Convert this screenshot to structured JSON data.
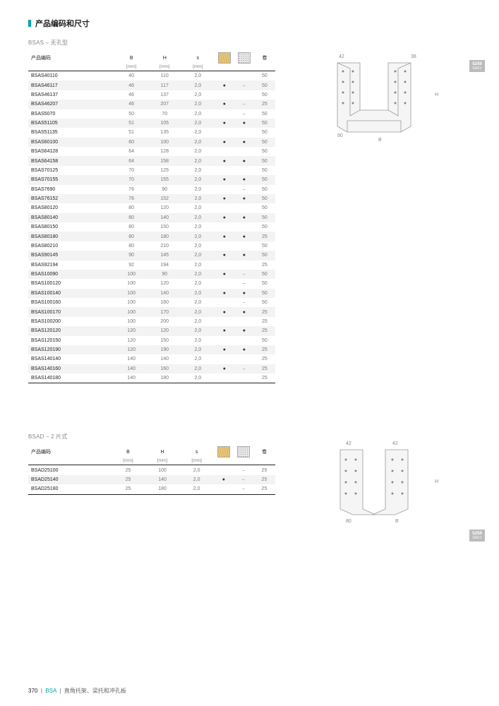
{
  "page_title": "产品编码和尺寸",
  "badge": {
    "code": "S250",
    "finish": "GALV"
  },
  "section1": {
    "subtitle": "BSAS – 无孔型",
    "headers": {
      "code": "产品编码",
      "b": "B",
      "h": "H",
      "s": "s",
      "qty": "卷"
    },
    "units": {
      "b": "[mm]",
      "h": "[mm]",
      "s": "[mm]"
    },
    "diagram": {
      "l1": "42",
      "l2": "38",
      "hlabel": "H",
      "blabel": "B",
      "slabel": "90"
    },
    "rows": [
      {
        "code": "BSAS40110",
        "b": "40",
        "h": "110",
        "s": "2,0",
        "wood": "",
        "conc": "",
        "qty": "50"
      },
      {
        "code": "BSAS46117",
        "b": "46",
        "h": "117",
        "s": "2,0",
        "wood": "●",
        "conc": "–",
        "qty": "50"
      },
      {
        "code": "BSAS46137",
        "b": "46",
        "h": "137",
        "s": "2,0",
        "wood": "",
        "conc": "",
        "qty": "50"
      },
      {
        "code": "BSAS46207",
        "b": "46",
        "h": "207",
        "s": "2,0",
        "wood": "●",
        "conc": "–",
        "qty": "25"
      },
      {
        "code": "BSAS5070",
        "b": "50",
        "h": "70",
        "s": "2,0",
        "wood": "",
        "conc": "–",
        "qty": "50"
      },
      {
        "code": "BSAS51105",
        "b": "51",
        "h": "105",
        "s": "2,0",
        "wood": "●",
        "conc": "●",
        "qty": "50"
      },
      {
        "code": "BSAS51135",
        "b": "51",
        "h": "135",
        "s": "2,0",
        "wood": "",
        "conc": "",
        "qty": "50"
      },
      {
        "code": "BSAS60100",
        "b": "60",
        "h": "100",
        "s": "2,0",
        "wood": "●",
        "conc": "●",
        "qty": "50"
      },
      {
        "code": "BSAS64128",
        "b": "64",
        "h": "128",
        "s": "2,0",
        "wood": "",
        "conc": "",
        "qty": "50"
      },
      {
        "code": "BSAS64158",
        "b": "64",
        "h": "158",
        "s": "2,0",
        "wood": "●",
        "conc": "●",
        "qty": "50"
      },
      {
        "code": "BSAS70125",
        "b": "70",
        "h": "125",
        "s": "2,0",
        "wood": "",
        "conc": "",
        "qty": "50"
      },
      {
        "code": "BSAS70155",
        "b": "70",
        "h": "155",
        "s": "2,0",
        "wood": "●",
        "conc": "●",
        "qty": "50"
      },
      {
        "code": "BSAS7690",
        "b": "76",
        "h": "90",
        "s": "2,0",
        "wood": "",
        "conc": "–",
        "qty": "50"
      },
      {
        "code": "BSAS76152",
        "b": "76",
        "h": "152",
        "s": "2,0",
        "wood": "●",
        "conc": "●",
        "qty": "50"
      },
      {
        "code": "BSAS80120",
        "b": "80",
        "h": "120",
        "s": "2,0",
        "wood": "",
        "conc": "",
        "qty": "50"
      },
      {
        "code": "BSAS80140",
        "b": "80",
        "h": "140",
        "s": "2,0",
        "wood": "●",
        "conc": "●",
        "qty": "50"
      },
      {
        "code": "BSAS80150",
        "b": "80",
        "h": "150",
        "s": "2,0",
        "wood": "",
        "conc": "",
        "qty": "50"
      },
      {
        "code": "BSAS80180",
        "b": "80",
        "h": "180",
        "s": "2,0",
        "wood": "●",
        "conc": "●",
        "qty": "25"
      },
      {
        "code": "BSAS80210",
        "b": "80",
        "h": "210",
        "s": "2,0",
        "wood": "",
        "conc": "",
        "qty": "50"
      },
      {
        "code": "BSAS90145",
        "b": "90",
        "h": "145",
        "s": "2,0",
        "wood": "●",
        "conc": "●",
        "qty": "50"
      },
      {
        "code": "BSAS92194",
        "b": "92",
        "h": "194",
        "s": "2,0",
        "wood": "",
        "conc": "",
        "qty": "25"
      },
      {
        "code": "BSAS10090",
        "b": "100",
        "h": "90",
        "s": "2,0",
        "wood": "●",
        "conc": "–",
        "qty": "50"
      },
      {
        "code": "BSAS100120",
        "b": "100",
        "h": "120",
        "s": "2,0",
        "wood": "",
        "conc": "–",
        "qty": "50"
      },
      {
        "code": "BSAS100140",
        "b": "100",
        "h": "140",
        "s": "2,0",
        "wood": "●",
        "conc": "●",
        "qty": "50"
      },
      {
        "code": "BSAS100160",
        "b": "100",
        "h": "160",
        "s": "2,0",
        "wood": "",
        "conc": "–",
        "qty": "50"
      },
      {
        "code": "BSAS100170",
        "b": "100",
        "h": "170",
        "s": "2,0",
        "wood": "●",
        "conc": "●",
        "qty": "25"
      },
      {
        "code": "BSAS100200",
        "b": "100",
        "h": "200",
        "s": "2,0",
        "wood": "",
        "conc": "",
        "qty": "25"
      },
      {
        "code": "BSAS120120",
        "b": "120",
        "h": "120",
        "s": "2,0",
        "wood": "●",
        "conc": "●",
        "qty": "25"
      },
      {
        "code": "BSAS120150",
        "b": "120",
        "h": "150",
        "s": "2,0",
        "wood": "",
        "conc": "",
        "qty": "50"
      },
      {
        "code": "BSAS120190",
        "b": "120",
        "h": "190",
        "s": "2,0",
        "wood": "●",
        "conc": "●",
        "qty": "25"
      },
      {
        "code": "BSAS140140",
        "b": "140",
        "h": "140",
        "s": "2,0",
        "wood": "",
        "conc": "",
        "qty": "25"
      },
      {
        "code": "BSAS140160",
        "b": "140",
        "h": "160",
        "s": "2,0",
        "wood": "●",
        "conc": "–",
        "qty": "25"
      },
      {
        "code": "BSAS140180",
        "b": "140",
        "h": "180",
        "s": "2,0",
        "wood": "",
        "conc": "",
        "qty": "25"
      }
    ]
  },
  "section2": {
    "subtitle": "BSAD – 2 片式",
    "diagram": {
      "l1": "42",
      "l2": "42",
      "hlabel": "H",
      "blabel": "B",
      "slabel": "80"
    },
    "rows": [
      {
        "code": "BSAD25100",
        "b": "25",
        "h": "100",
        "s": "2,0",
        "wood": "",
        "conc": "–",
        "qty": "25"
      },
      {
        "code": "BSAD25140",
        "b": "25",
        "h": "140",
        "s": "2,0",
        "wood": "●",
        "conc": "–",
        "qty": "25"
      },
      {
        "code": "BSAD25180",
        "b": "25",
        "h": "180",
        "s": "2,0",
        "wood": "",
        "conc": "–",
        "qty": "25"
      }
    ]
  },
  "footer": {
    "page": "370",
    "sep": "|",
    "code": "BSA",
    "desc": "直角托架、梁托和冲孔板"
  }
}
